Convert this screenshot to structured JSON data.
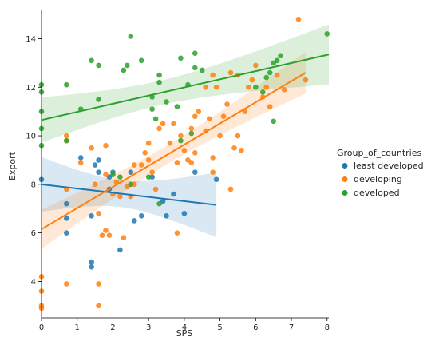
{
  "chart_data": {
    "type": "scatter",
    "title": "",
    "xlabel": "SPS",
    "ylabel": "Export",
    "xlim": [
      0,
      8.05
    ],
    "ylim": [
      2.5,
      15.2
    ],
    "xticks": [
      0,
      1,
      2,
      3,
      4,
      5,
      6,
      7,
      8
    ],
    "yticks": [
      4,
      6,
      8,
      10,
      12,
      14
    ],
    "grid": false,
    "legend": {
      "title": "Group_of_countries",
      "placement": "right"
    },
    "series": [
      {
        "name": "least developed",
        "color": "#1f77b4",
        "points": [
          [
            0.0,
            8.2
          ],
          [
            0.7,
            6.0
          ],
          [
            0.7,
            6.6
          ],
          [
            0.7,
            7.2
          ],
          [
            1.1,
            9.1
          ],
          [
            1.4,
            4.6
          ],
          [
            1.4,
            4.8
          ],
          [
            1.4,
            6.7
          ],
          [
            1.5,
            8.8
          ],
          [
            1.6,
            8.5
          ],
          [
            1.6,
            9.0
          ],
          [
            1.9,
            7.8
          ],
          [
            1.9,
            8.3
          ],
          [
            2.0,
            8.5
          ],
          [
            2.2,
            5.3
          ],
          [
            2.5,
            8.5
          ],
          [
            2.6,
            6.5
          ],
          [
            2.8,
            6.7
          ],
          [
            3.1,
            8.3
          ],
          [
            3.4,
            7.3
          ],
          [
            3.5,
            6.7
          ],
          [
            3.7,
            7.6
          ],
          [
            4.0,
            6.8
          ],
          [
            4.3,
            8.5
          ],
          [
            4.9,
            8.2
          ]
        ],
        "regression": {
          "x": [
            0,
            4.9
          ],
          "y": [
            8.0,
            7.15
          ]
        }
      },
      {
        "name": "developing",
        "color": "#ff7f0e",
        "points": [
          [
            0.0,
            2.9
          ],
          [
            0.0,
            3.0
          ],
          [
            0.0,
            3.6
          ],
          [
            0.0,
            4.2
          ],
          [
            0.7,
            3.9
          ],
          [
            0.7,
            7.8
          ],
          [
            0.7,
            9.8
          ],
          [
            0.7,
            10.0
          ],
          [
            1.1,
            8.9
          ],
          [
            1.4,
            9.5
          ],
          [
            1.5,
            8.0
          ],
          [
            1.6,
            3.0
          ],
          [
            1.6,
            3.9
          ],
          [
            1.6,
            6.8
          ],
          [
            1.7,
            5.9
          ],
          [
            1.8,
            6.1
          ],
          [
            1.8,
            8.4
          ],
          [
            1.8,
            9.6
          ],
          [
            1.9,
            5.9
          ],
          [
            2.0,
            7.6
          ],
          [
            2.1,
            8.1
          ],
          [
            2.2,
            7.5
          ],
          [
            2.3,
            5.8
          ],
          [
            2.4,
            7.9
          ],
          [
            2.5,
            7.5
          ],
          [
            2.6,
            8.0
          ],
          [
            2.6,
            8.8
          ],
          [
            2.8,
            8.8
          ],
          [
            2.9,
            9.3
          ],
          [
            3.0,
            9.0
          ],
          [
            3.0,
            9.7
          ],
          [
            3.1,
            8.5
          ],
          [
            3.2,
            7.8
          ],
          [
            3.3,
            10.3
          ],
          [
            3.4,
            10.5
          ],
          [
            3.6,
            9.7
          ],
          [
            3.7,
            10.5
          ],
          [
            3.8,
            6.0
          ],
          [
            3.8,
            8.9
          ],
          [
            3.9,
            10.0
          ],
          [
            4.0,
            9.4
          ],
          [
            4.1,
            9.0
          ],
          [
            4.2,
            8.9
          ],
          [
            4.2,
            10.3
          ],
          [
            4.3,
            10.8
          ],
          [
            4.3,
            9.3
          ],
          [
            4.4,
            11.0
          ],
          [
            4.6,
            10.2
          ],
          [
            4.6,
            12.0
          ],
          [
            4.7,
            10.7
          ],
          [
            4.8,
            8.5
          ],
          [
            4.8,
            9.1
          ],
          [
            4.8,
            12.5
          ],
          [
            4.9,
            12.0
          ],
          [
            5.0,
            10.0
          ],
          [
            5.1,
            10.8
          ],
          [
            5.2,
            11.3
          ],
          [
            5.3,
            12.6
          ],
          [
            5.3,
            7.8
          ],
          [
            5.4,
            9.5
          ],
          [
            5.5,
            10.0
          ],
          [
            5.5,
            12.5
          ],
          [
            5.6,
            9.4
          ],
          [
            5.7,
            11.0
          ],
          [
            5.8,
            12.0
          ],
          [
            5.9,
            12.3
          ],
          [
            6.0,
            12.9
          ],
          [
            6.2,
            11.6
          ],
          [
            6.3,
            12.0
          ],
          [
            6.4,
            11.2
          ],
          [
            6.6,
            12.5
          ],
          [
            6.8,
            11.9
          ],
          [
            7.2,
            14.8
          ],
          [
            7.4,
            12.3
          ]
        ],
        "regression": {
          "x": [
            0,
            7.4
          ],
          "y": [
            6.15,
            12.6
          ]
        }
      },
      {
        "name": "developed",
        "color": "#2ca02c",
        "points": [
          [
            0.0,
            9.6
          ],
          [
            0.0,
            10.3
          ],
          [
            0.0,
            11.0
          ],
          [
            0.0,
            11.8
          ],
          [
            0.0,
            12.1
          ],
          [
            0.7,
            9.8
          ],
          [
            0.7,
            12.1
          ],
          [
            1.1,
            11.1
          ],
          [
            1.4,
            13.1
          ],
          [
            1.6,
            11.5
          ],
          [
            1.6,
            12.9
          ],
          [
            2.0,
            8.4
          ],
          [
            2.2,
            8.3
          ],
          [
            2.3,
            12.7
          ],
          [
            2.4,
            12.9
          ],
          [
            2.5,
            14.1
          ],
          [
            2.5,
            8.0
          ],
          [
            2.8,
            13.1
          ],
          [
            3.0,
            8.3
          ],
          [
            3.1,
            11.1
          ],
          [
            3.1,
            11.6
          ],
          [
            3.2,
            10.7
          ],
          [
            3.3,
            7.2
          ],
          [
            3.3,
            12.2
          ],
          [
            3.3,
            12.5
          ],
          [
            3.5,
            11.4
          ],
          [
            3.8,
            11.2
          ],
          [
            3.9,
            13.2
          ],
          [
            3.9,
            9.8
          ],
          [
            4.1,
            12.1
          ],
          [
            4.2,
            10.1
          ],
          [
            4.3,
            12.8
          ],
          [
            4.3,
            13.4
          ],
          [
            4.5,
            12.7
          ],
          [
            6.0,
            12.0
          ],
          [
            6.2,
            11.8
          ],
          [
            6.3,
            12.4
          ],
          [
            6.4,
            12.6
          ],
          [
            6.5,
            13.0
          ],
          [
            6.6,
            13.1
          ],
          [
            6.7,
            13.3
          ],
          [
            6.5,
            10.6
          ],
          [
            8.0,
            14.2
          ]
        ],
        "regression": {
          "x": [
            0,
            8.05
          ],
          "y": [
            10.65,
            13.35
          ]
        }
      }
    ]
  }
}
